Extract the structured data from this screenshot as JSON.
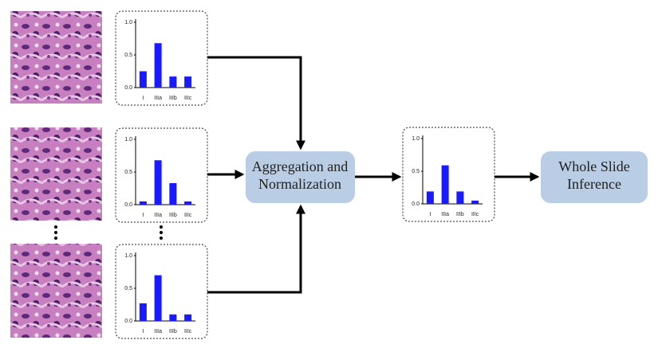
{
  "tile_charts": [
    {
      "type": "bar",
      "categories": [
        "I",
        "IIIa",
        "IIIb",
        "IIIc"
      ],
      "values": [
        0.25,
        0.68,
        0.17,
        0.17
      ],
      "color": "#1a1aff",
      "ylim": [
        0,
        1
      ],
      "yticks": [
        {
          "value": 0,
          "label": "0.0"
        },
        {
          "value": 0.5,
          "label": "0.5"
        },
        {
          "value": 1,
          "label": "1.0"
        }
      ]
    },
    {
      "type": "bar",
      "categories": [
        "I",
        "IIIa",
        "IIIb",
        "IIIc"
      ],
      "values": [
        0.05,
        0.68,
        0.33,
        0.05
      ],
      "color": "#1a1aff",
      "ylim": [
        0,
        1
      ],
      "yticks": [
        {
          "value": 0,
          "label": "0.0"
        },
        {
          "value": 0.5,
          "label": "0.5"
        },
        {
          "value": 1,
          "label": "1.0"
        }
      ]
    },
    {
      "type": "bar",
      "categories": [
        "I",
        "IIIa",
        "IIIb",
        "IIIc"
      ],
      "values": [
        0.27,
        0.7,
        0.1,
        0.1
      ],
      "color": "#1a1aff",
      "ylim": [
        0,
        1
      ],
      "yticks": [
        {
          "value": 0,
          "label": "0.0"
        },
        {
          "value": 0.5,
          "label": "0.5"
        },
        {
          "value": 1,
          "label": "1.0"
        }
      ]
    }
  ],
  "aggregate_chart": {
    "type": "bar",
    "categories": [
      "I",
      "IIIa",
      "IIIb",
      "IIIc"
    ],
    "values": [
      0.19,
      0.59,
      0.19,
      0.05
    ],
    "color": "#1a1aff",
    "ylim": [
      0,
      1
    ],
    "yticks": [
      {
        "value": 0,
        "label": "0.0"
      },
      {
        "value": 0.5,
        "label": "0.5"
      },
      {
        "value": 1,
        "label": "1.0"
      }
    ]
  },
  "nodes": {
    "aggregation": [
      "Aggregation and",
      "Normalization"
    ],
    "inference": [
      "Whole Slide",
      "Inference"
    ]
  }
}
